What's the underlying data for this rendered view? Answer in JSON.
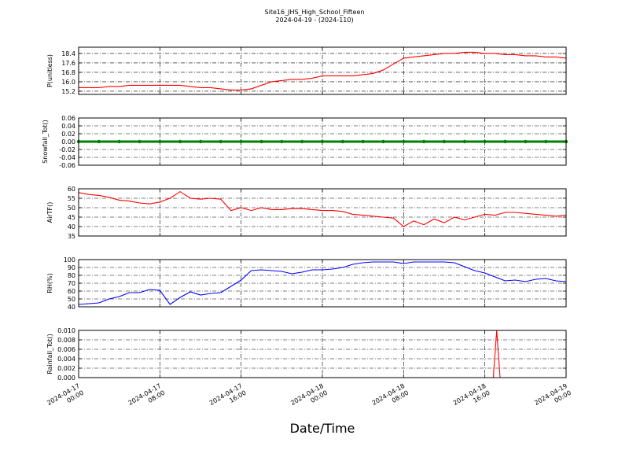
{
  "chart_data": [
    {
      "type": "line",
      "title": "Site16_JHS_High_School_Fifteen",
      "subtitle": "2024-04-19 - (2024-110)",
      "ylabel": "P(unitless)",
      "xlim": [
        "2024-04-17 00:00",
        "2024-04-19 00:00"
      ],
      "ylim": [
        14.93,
        18.93
      ],
      "yticks": [
        15.2,
        {
          "value": 16.0,
          "label": "16.0"
        },
        16.8,
        17.6,
        18.4
      ],
      "grid": true,
      "x": [
        "2024-04-17 00:00",
        "2024-04-17 01:00",
        "2024-04-17 02:00",
        "2024-04-17 03:00",
        "2024-04-17 04:00",
        "2024-04-17 05:00",
        "2024-04-17 06:00",
        "2024-04-17 07:00",
        "2024-04-17 08:00",
        "2024-04-17 09:00",
        "2024-04-17 10:00",
        "2024-04-17 11:00",
        "2024-04-17 12:00",
        "2024-04-17 13:00",
        "2024-04-17 14:00",
        "2024-04-17 15:00",
        "2024-04-17 16:00",
        "2024-04-17 17:00",
        "2024-04-17 18:00",
        "2024-04-17 19:00",
        "2024-04-17 20:00",
        "2024-04-17 21:00",
        "2024-04-17 22:00",
        "2024-04-17 23:00",
        "2024-04-18 00:00",
        "2024-04-18 01:00",
        "2024-04-18 02:00",
        "2024-04-18 03:00",
        "2024-04-18 04:00",
        "2024-04-18 05:00",
        "2024-04-18 06:00",
        "2024-04-18 07:00",
        "2024-04-18 08:00",
        "2024-04-18 09:00",
        "2024-04-18 10:00",
        "2024-04-18 11:00",
        "2024-04-18 12:00",
        "2024-04-18 13:00",
        "2024-04-18 14:00",
        "2024-04-18 15:00",
        "2024-04-18 16:00",
        "2024-04-18 17:00",
        "2024-04-18 18:00",
        "2024-04-18 19:00",
        "2024-04-18 20:00",
        "2024-04-18 21:00",
        "2024-04-18 22:00",
        "2024-04-18 23:00",
        "2024-04-19 00:00"
      ],
      "series": [
        {
          "color": "#ff0000",
          "values": [
            15.5,
            15.5,
            15.5,
            15.6,
            15.6,
            15.7,
            15.7,
            15.7,
            15.7,
            15.7,
            15.7,
            15.6,
            15.5,
            15.5,
            15.4,
            15.3,
            15.3,
            15.4,
            15.7,
            16.0,
            16.1,
            16.2,
            16.2,
            16.3,
            16.5,
            16.5,
            16.5,
            16.5,
            16.6,
            16.7,
            17.0,
            17.5,
            18.0,
            18.1,
            18.2,
            18.3,
            18.4,
            18.4,
            18.5,
            18.5,
            18.4,
            18.4,
            18.3,
            18.3,
            18.2,
            18.2,
            18.1,
            18.1,
            18.0
          ]
        }
      ]
    },
    {
      "type": "line",
      "ylabel": "Snowfall_Tot()",
      "xlim": [
        "2024-04-17 00:00",
        "2024-04-19 00:00"
      ],
      "ylim": [
        -0.06,
        0.06
      ],
      "yticks": [
        -0.06,
        -0.04,
        -0.02,
        {
          "value": 0,
          "label": "0.00"
        },
        0.02,
        0.04,
        0.06
      ],
      "grid": true,
      "x": [
        "2024-04-17 00:00",
        "2024-04-17 02:00",
        "2024-04-17 04:00",
        "2024-04-17 06:00",
        "2024-04-17 08:00",
        "2024-04-17 10:00",
        "2024-04-17 12:00",
        "2024-04-17 14:00",
        "2024-04-17 16:00",
        "2024-04-17 18:00",
        "2024-04-17 20:00",
        "2024-04-17 22:00",
        "2024-04-18 00:00",
        "2024-04-18 02:00",
        "2024-04-18 04:00",
        "2024-04-18 06:00",
        "2024-04-18 08:00",
        "2024-04-18 10:00",
        "2024-04-18 12:00",
        "2024-04-18 14:00",
        "2024-04-18 16:00",
        "2024-04-18 18:00",
        "2024-04-18 20:00",
        "2024-04-18 22:00",
        "2024-04-19 00:00"
      ],
      "series": [
        {
          "color": "#008000",
          "marker": true,
          "values": [
            0,
            0,
            0,
            0,
            0,
            0,
            0,
            0,
            0,
            0,
            0,
            0,
            0,
            0,
            0,
            0,
            0,
            0,
            0,
            0,
            0,
            0,
            0,
            0,
            0
          ]
        }
      ]
    },
    {
      "type": "line",
      "ylabel": "AirTF()",
      "xlim": [
        "2024-04-17 00:00",
        "2024-04-19 00:00"
      ],
      "ylim": [
        35,
        60
      ],
      "yticks": [
        35,
        40,
        45,
        50,
        55,
        60
      ],
      "grid": true,
      "x": [
        "2024-04-17 00:00",
        "2024-04-17 01:00",
        "2024-04-17 02:00",
        "2024-04-17 03:00",
        "2024-04-17 04:00",
        "2024-04-17 05:00",
        "2024-04-17 06:00",
        "2024-04-17 07:00",
        "2024-04-17 08:00",
        "2024-04-17 09:00",
        "2024-04-17 10:00",
        "2024-04-17 11:00",
        "2024-04-17 12:00",
        "2024-04-17 13:00",
        "2024-04-17 14:00",
        "2024-04-17 15:00",
        "2024-04-17 16:00",
        "2024-04-17 17:00",
        "2024-04-17 18:00",
        "2024-04-17 19:00",
        "2024-04-17 20:00",
        "2024-04-17 21:00",
        "2024-04-17 22:00",
        "2024-04-17 23:00",
        "2024-04-18 00:00",
        "2024-04-18 01:00",
        "2024-04-18 02:00",
        "2024-04-18 03:00",
        "2024-04-18 04:00",
        "2024-04-18 05:00",
        "2024-04-18 06:00",
        "2024-04-18 07:00",
        "2024-04-18 08:00",
        "2024-04-18 09:00",
        "2024-04-18 10:00",
        "2024-04-18 11:00",
        "2024-04-18 12:00",
        "2024-04-18 13:00",
        "2024-04-18 14:00",
        "2024-04-18 15:00",
        "2024-04-18 16:00",
        "2024-04-18 17:00",
        "2024-04-18 18:00",
        "2024-04-18 19:00",
        "2024-04-18 20:00",
        "2024-04-18 21:00",
        "2024-04-18 22:00",
        "2024-04-18 23:00",
        "2024-04-19 00:00"
      ],
      "series": [
        {
          "color": "#ff0000",
          "values": [
            58,
            57,
            56.5,
            55.5,
            54,
            53.5,
            52.5,
            52,
            53,
            55,
            58.5,
            55,
            54.5,
            55,
            54.5,
            48.5,
            50,
            48.5,
            50,
            49,
            49,
            49.5,
            49.5,
            49,
            48.5,
            48.5,
            48,
            46.5,
            46,
            45.5,
            45,
            44.5,
            40,
            43,
            41,
            44,
            42,
            45,
            43.5,
            45,
            46.5,
            46,
            47.5,
            47.5,
            47,
            46.5,
            46,
            45.5,
            46
          ]
        }
      ]
    },
    {
      "type": "line",
      "ylabel": "RH(%)",
      "xlim": [
        "2024-04-17 00:00",
        "2024-04-19 00:00"
      ],
      "ylim": [
        40,
        100
      ],
      "yticks": [
        40,
        50,
        60,
        70,
        80,
        90,
        100
      ],
      "grid": true,
      "x": [
        "2024-04-17 00:00",
        "2024-04-17 01:00",
        "2024-04-17 02:00",
        "2024-04-17 03:00",
        "2024-04-17 04:00",
        "2024-04-17 05:00",
        "2024-04-17 06:00",
        "2024-04-17 07:00",
        "2024-04-17 08:00",
        "2024-04-17 09:00",
        "2024-04-17 10:00",
        "2024-04-17 11:00",
        "2024-04-17 12:00",
        "2024-04-17 13:00",
        "2024-04-17 14:00",
        "2024-04-17 15:00",
        "2024-04-17 16:00",
        "2024-04-17 17:00",
        "2024-04-17 18:00",
        "2024-04-17 19:00",
        "2024-04-17 20:00",
        "2024-04-17 21:00",
        "2024-04-17 22:00",
        "2024-04-17 23:00",
        "2024-04-18 00:00",
        "2024-04-18 01:00",
        "2024-04-18 02:00",
        "2024-04-18 03:00",
        "2024-04-18 04:00",
        "2024-04-18 05:00",
        "2024-04-18 06:00",
        "2024-04-18 07:00",
        "2024-04-18 08:00",
        "2024-04-18 09:00",
        "2024-04-18 10:00",
        "2024-04-18 11:00",
        "2024-04-18 12:00",
        "2024-04-18 13:00",
        "2024-04-18 14:00",
        "2024-04-18 15:00",
        "2024-04-18 16:00",
        "2024-04-18 17:00",
        "2024-04-18 18:00",
        "2024-04-18 19:00",
        "2024-04-18 20:00",
        "2024-04-18 21:00",
        "2024-04-18 22:00",
        "2024-04-18 23:00",
        "2024-04-19 00:00"
      ],
      "series": [
        {
          "color": "#0000ff",
          "values": [
            43,
            44,
            45,
            50,
            53,
            58,
            58,
            62,
            61,
            43,
            52,
            59,
            55,
            57,
            58,
            66,
            74,
            86,
            87,
            86,
            85,
            82,
            84,
            87,
            87,
            88,
            90,
            94,
            96,
            97,
            97,
            97,
            95,
            97,
            97,
            97,
            97,
            96,
            91,
            86,
            83,
            78,
            73,
            74,
            72,
            75,
            76,
            73,
            72
          ]
        }
      ]
    },
    {
      "type": "line",
      "ylabel": "Rainfall_Tot()",
      "xlabel": "Date/Time",
      "xlim": [
        "2024-04-17 00:00",
        "2024-04-19 00:00"
      ],
      "xticks": [
        "2024-04-17 00:00",
        "2024-04-17 08:00",
        "2024-04-17 16:00",
        "2024-04-18 00:00",
        "2024-04-18 08:00",
        "2024-04-18 16:00",
        "2024-04-19 00:00"
      ],
      "ylim": [
        0,
        0.01
      ],
      "yticks": [
        {
          "value": 0,
          "label": "0.000"
        },
        {
          "value": 0.002,
          "label": "0.002"
        },
        {
          "value": 0.004,
          "label": "0.004"
        },
        {
          "value": 0.006,
          "label": "0.006"
        },
        {
          "value": 0.008,
          "label": "0.008"
        },
        {
          "value": 0.01,
          "label": "0.010"
        }
      ],
      "grid": true,
      "x": [
        "2024-04-17 00:00",
        "2024-04-18 16:50",
        "2024-04-18 17:10",
        "2024-04-18 17:30",
        "2024-04-19 00:00"
      ],
      "series": [
        {
          "color": "#ff0000",
          "values": [
            0,
            0,
            0.01,
            0,
            0
          ]
        }
      ]
    }
  ]
}
